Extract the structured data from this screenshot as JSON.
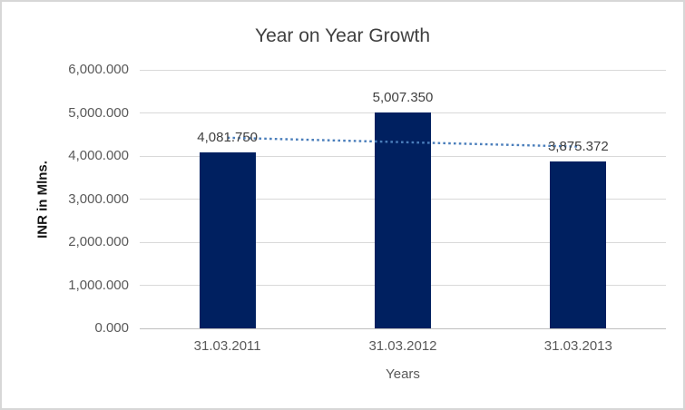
{
  "chart_data": {
    "type": "bar",
    "title": "Year on Year Growth",
    "categories": [
      "31.03.2011",
      "31.03.2012",
      "31.03.2013"
    ],
    "values": [
      4081.75,
      5007.35,
      3875.372
    ],
    "data_labels": [
      "4,081.750",
      "5,007.350",
      "3,875.372"
    ],
    "xlabel": "Years",
    "ylabel": "INR in Mlns.",
    "ylim": [
      0,
      6000
    ],
    "ytick_step": 1000,
    "y_tick_labels": [
      "6,000.000",
      "5,000.000",
      "4,000.000",
      "3,000.000",
      "2,000.000",
      "1,000.000",
      "0.000"
    ],
    "grid": true,
    "legend": false,
    "bar_color": "#002060",
    "gridline_color": "#d9d9d9",
    "axis_line_color": "#bfbfbf",
    "label_color": "#404040",
    "tick_color": "#595959",
    "trendline": {
      "type": "linear",
      "style": "dotted",
      "color": "#4a7ebb",
      "endpoint_values": [
        4424.68,
        4218.3
      ]
    }
  }
}
